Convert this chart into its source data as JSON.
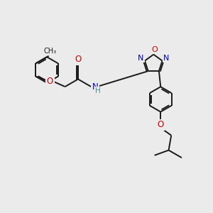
{
  "bg_color": "#ebebeb",
  "bond_color": "#1a1a1a",
  "N_color": "#0000cc",
  "O_color": "#cc0000",
  "H_color": "#4a9090",
  "line_width": 1.4,
  "dbo": 0.055,
  "figsize": [
    3.0,
    3.0
  ],
  "dpi": 100,
  "xlim": [
    0,
    10
  ],
  "ylim": [
    0,
    10
  ]
}
